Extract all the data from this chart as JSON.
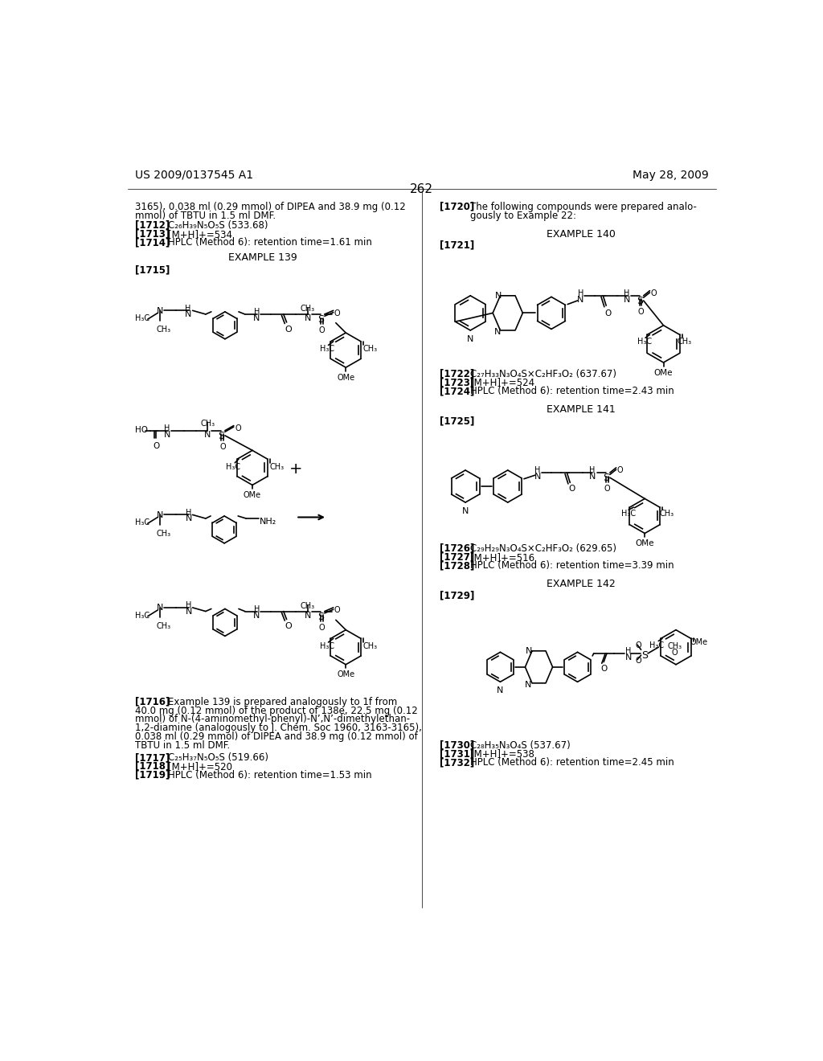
{
  "page_header_left": "US 2009/0137545 A1",
  "page_header_right": "May 28, 2009",
  "page_number": "262",
  "background_color": "#ffffff"
}
